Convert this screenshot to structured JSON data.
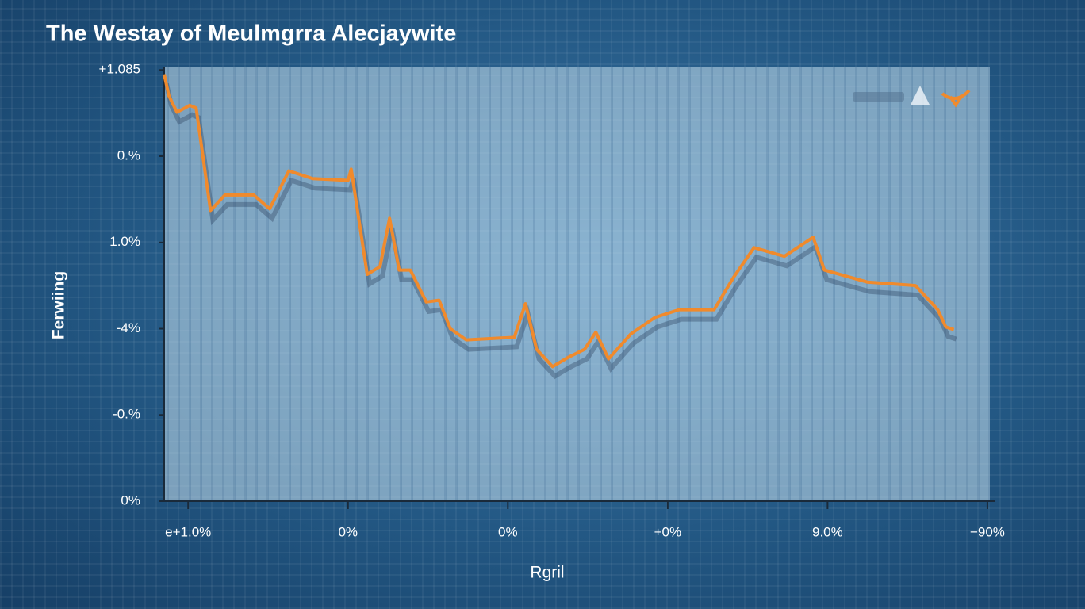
{
  "chart_data": {
    "type": "line",
    "title": "The Westay of Meulmgrra Alecjaywite",
    "x_label": "Rgril",
    "y_label": "Ferwiing",
    "xlim": [
      -0.15,
      5.05
    ],
    "xticks": [
      {
        "value": 0,
        "label": "e+1.0%"
      },
      {
        "value": 1,
        "label": "0%"
      },
      {
        "value": 2,
        "label": "0%"
      },
      {
        "value": 3,
        "label": "+0%"
      },
      {
        "value": 4,
        "label": "9.0%"
      },
      {
        "value": 5,
        "label": "−90%"
      }
    ],
    "ylim": [
      0,
      5.03
    ],
    "yticks": [
      {
        "value": 0,
        "label": "0%"
      },
      {
        "value": 1,
        "label": "-0.%"
      },
      {
        "value": 2,
        "label": "-4%"
      },
      {
        "value": 3,
        "label": "1.0%"
      },
      {
        "value": 4,
        "label": "0.%"
      },
      {
        "value": 5,
        "label": "+1.085"
      }
    ],
    "x": [
      -0.15,
      -0.12,
      -0.07,
      -0.02,
      0.01,
      0.05,
      0.14,
      0.23,
      0.41,
      0.51,
      0.63,
      0.78,
      1.0,
      1.02,
      1.12,
      1.2,
      1.26,
      1.32,
      1.39,
      1.49,
      1.57,
      1.64,
      1.74,
      2.04,
      2.11,
      2.18,
      2.28,
      2.38,
      2.48,
      2.55,
      2.63,
      2.77,
      2.92,
      3.07,
      3.29,
      3.41,
      3.54,
      3.73,
      3.91,
      3.98,
      4.25,
      4.55,
      4.69,
      4.74,
      4.79
    ],
    "series": [
      {
        "color": "#f08a2c",
        "values": [
          4.95,
          4.7,
          4.51,
          4.56,
          4.59,
          4.56,
          3.37,
          3.55,
          3.55,
          3.39,
          3.83,
          3.74,
          3.72,
          3.85,
          2.63,
          2.72,
          3.28,
          2.68,
          2.68,
          2.31,
          2.33,
          2.0,
          1.87,
          1.9,
          2.29,
          1.76,
          1.56,
          1.67,
          1.76,
          1.96,
          1.65,
          1.94,
          2.13,
          2.22,
          2.22,
          2.59,
          2.94,
          2.84,
          3.06,
          2.68,
          2.54,
          2.5,
          2.22,
          2.02,
          1.99
        ]
      }
    ]
  }
}
